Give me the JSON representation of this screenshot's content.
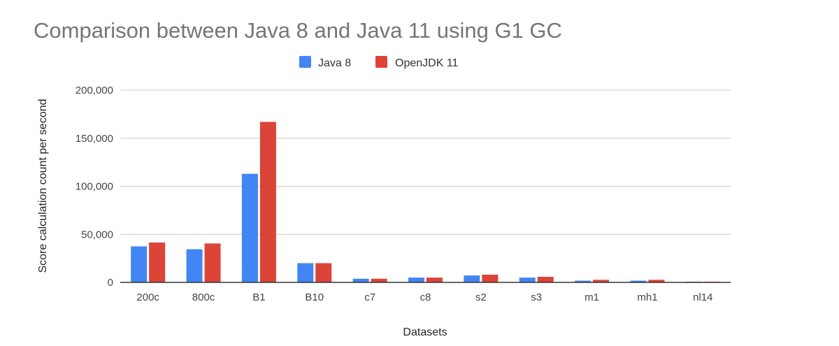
{
  "chart_data": {
    "type": "bar",
    "title": "Comparison between Java 8 and Java 11 using G1 GC",
    "xlabel": "Datasets",
    "ylabel": "Score calculation count per second",
    "ylim": [
      0,
      200000
    ],
    "yticks": [
      0,
      50000,
      100000,
      150000,
      200000
    ],
    "ytick_labels": [
      "0",
      "50,000",
      "100,000",
      "150,000",
      "200,000"
    ],
    "grid": true,
    "legend_position": "top-center",
    "categories": [
      "200c",
      "800c",
      "B1",
      "B10",
      "c7",
      "c8",
      "s2",
      "s3",
      "m1",
      "mh1",
      "nl14"
    ],
    "series": [
      {
        "name": "Java 8",
        "color": "#4285f4",
        "values": [
          37500,
          34500,
          113000,
          20000,
          3800,
          5000,
          7200,
          5000,
          1800,
          1800,
          700
        ]
      },
      {
        "name": "OpenJDK 11",
        "color": "#db4437",
        "values": [
          41500,
          40500,
          167000,
          20000,
          3800,
          5000,
          8000,
          5800,
          2700,
          2700,
          700
        ]
      }
    ]
  }
}
